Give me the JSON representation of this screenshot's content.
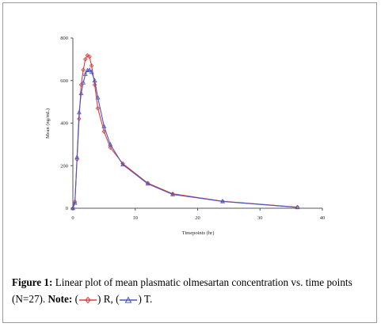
{
  "chart_data": {
    "type": "line",
    "xlabel": "Timepoints (hr)",
    "ylabel": "Mean (ng/mL)",
    "xlim": [
      0,
      40
    ],
    "ylim": [
      0,
      800
    ],
    "xticks": [
      "0",
      "10",
      "20",
      "30",
      "40"
    ],
    "yticks": [
      "0",
      "200",
      "400",
      "600",
      "800"
    ],
    "grid": false,
    "series": [
      {
        "name": "R",
        "color": "#e23a3a",
        "marker": "diamond",
        "x": [
          0,
          0.33,
          0.67,
          1,
          1.33,
          1.67,
          2,
          2.33,
          2.67,
          3,
          3.5,
          4,
          5,
          6,
          8,
          12,
          16,
          24,
          36
        ],
        "y": [
          0,
          30,
          230,
          420,
          580,
          650,
          700,
          718,
          712,
          670,
          580,
          470,
          360,
          285,
          210,
          118,
          68,
          33,
          5
        ]
      },
      {
        "name": "T",
        "color": "#4a55c4",
        "marker": "triangle",
        "x": [
          0,
          0.33,
          0.67,
          1,
          1.33,
          1.67,
          2,
          2.33,
          2.67,
          3,
          3.5,
          4,
          5,
          6,
          8,
          12,
          16,
          24,
          36
        ],
        "y": [
          0,
          25,
          240,
          450,
          540,
          590,
          630,
          648,
          650,
          640,
          600,
          520,
          385,
          300,
          205,
          115,
          65,
          32,
          4
        ]
      }
    ]
  },
  "caption": {
    "figure_label": "Figure 1:",
    "text": " Linear plot of mean plasmatic olmesartan concentration vs. time points (N=27).",
    "note_label": "Note:",
    "r_open": " (",
    "r_close": ") R,",
    "t_open": " (",
    "t_close": ") T."
  }
}
